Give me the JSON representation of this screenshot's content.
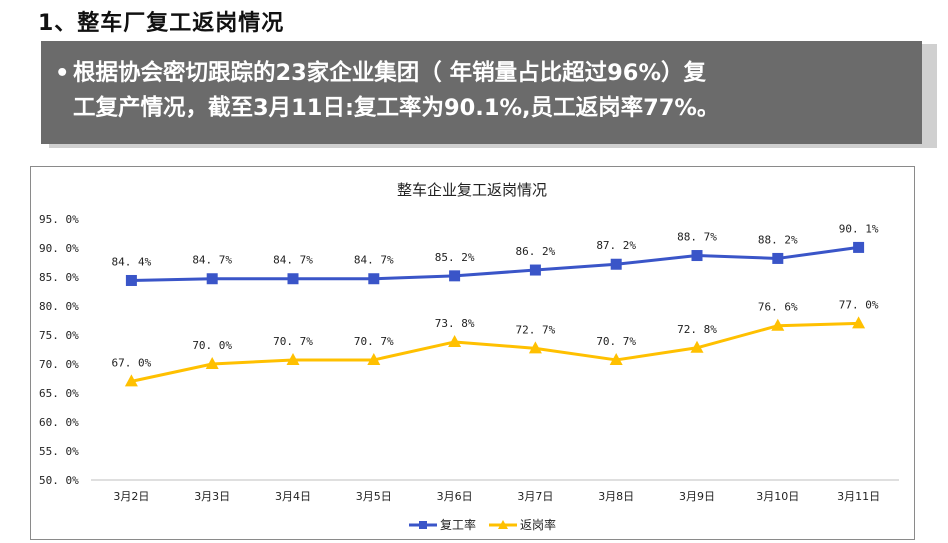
{
  "heading": "1、整车厂复工返岗情况",
  "banner": {
    "bullet": "•",
    "line1": "根据协会密切跟踪的23家企业集团（ 年销量占比超过96%）复",
    "line2": "工复产情况，截至3月11日:复工率为90.1%,员工返岗率77%。"
  },
  "chart_data": {
    "type": "line",
    "title": "整车企业复工返岗情况",
    "categories": [
      "3月2日",
      "3月3日",
      "3月4日",
      "3月5日",
      "3月6日",
      "3月7日",
      "3月8日",
      "3月9日",
      "3月10日",
      "3月11日"
    ],
    "series": [
      {
        "name": "复工率",
        "color": "#3a55c8",
        "marker": "square",
        "values": [
          84.4,
          84.7,
          84.7,
          84.7,
          85.2,
          86.2,
          87.2,
          88.7,
          88.2,
          90.1
        ],
        "labels": [
          "84. 4%",
          "84. 7%",
          "84. 7%",
          "84. 7%",
          "85. 2%",
          "86. 2%",
          "87. 2%",
          "88. 7%",
          "88. 2%",
          "90. 1%"
        ]
      },
      {
        "name": "返岗率",
        "color": "#ffc000",
        "marker": "triangle",
        "values": [
          67.0,
          70.0,
          70.7,
          70.7,
          73.8,
          72.7,
          70.7,
          72.8,
          76.6,
          77.0
        ],
        "labels": [
          "67. 0%",
          "70. 0%",
          "70. 7%",
          "70. 7%",
          "73. 8%",
          "72. 7%",
          "70. 7%",
          "72. 8%",
          "76. 6%",
          "77. 0%"
        ]
      }
    ],
    "ylim": [
      50,
      95
    ],
    "yticks": [
      "50. 0%",
      "55. 0%",
      "60. 0%",
      "65. 0%",
      "70. 0%",
      "75. 0%",
      "80. 0%",
      "85. 0%",
      "90. 0%",
      "95. 0%"
    ],
    "ytick_values": [
      50,
      55,
      60,
      65,
      70,
      75,
      80,
      85,
      90,
      95
    ],
    "grid": false,
    "legend": "bottom"
  }
}
